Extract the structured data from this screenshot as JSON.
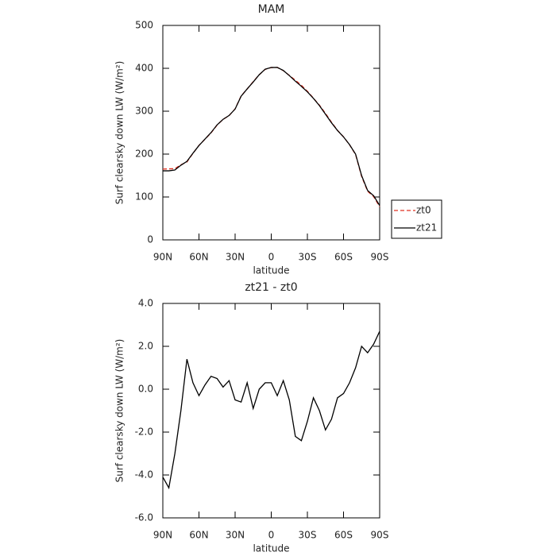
{
  "chart_data": [
    {
      "type": "line",
      "title": "MAM",
      "x_label": "latitude",
      "y_label": "Surf clearsky down LW (W/m²)",
      "x": [
        90,
        85,
        80,
        75,
        70,
        65,
        60,
        55,
        50,
        45,
        40,
        35,
        30,
        25,
        20,
        15,
        10,
        5,
        0,
        -5,
        -10,
        -15,
        -20,
        -25,
        -30,
        -35,
        -40,
        -45,
        -50,
        -55,
        -60,
        -65,
        -70,
        -75,
        -80,
        -85,
        -90
      ],
      "xlim": [
        90,
        -90
      ],
      "xticks": [
        {
          "value": 90,
          "label": "90N"
        },
        {
          "value": 60,
          "label": "60N"
        },
        {
          "value": 30,
          "label": "30N"
        },
        0,
        {
          "value": -30,
          "label": "30S"
        },
        {
          "value": -60,
          "label": "60S"
        },
        {
          "value": -90,
          "label": "90S"
        }
      ],
      "ylim": [
        0,
        500
      ],
      "yticks": [
        0,
        100,
        200,
        300,
        400,
        500
      ],
      "legend": "outside-right",
      "series": [
        {
          "name": "zt0",
          "color": "#e03020",
          "linestyle": "dashed",
          "values": [
            165.1,
            165.6,
            166,
            175,
            181.6,
            201.7,
            220.3,
            234.8,
            249.4,
            267.5,
            280.9,
            289.6,
            305.5,
            335.6,
            351.7,
            368.9,
            385,
            397.7,
            401.7,
            402.3,
            394.6,
            383.5,
            372.2,
            360.4,
            346.5,
            330.4,
            314,
            294.9,
            274.4,
            255.4,
            240.2,
            221.7,
            199,
            148,
            113.3,
            100.9,
            77.3
          ]
        },
        {
          "name": "zt21",
          "color": "#000000",
          "linestyle": "solid",
          "values": [
            161,
            161,
            163,
            174,
            183,
            202,
            220,
            235,
            250,
            268,
            281,
            290,
            305,
            335,
            352,
            368,
            385,
            398,
            402,
            402,
            395,
            383,
            370,
            358,
            345,
            330,
            313,
            293,
            273,
            255,
            240,
            222,
            200,
            150,
            115,
            103,
            80
          ]
        }
      ]
    },
    {
      "type": "line",
      "title": "zt21 - zt0",
      "x_label": "latitude",
      "y_label": "Surf clearsky down LW (W/m²)",
      "x": [
        90,
        85,
        80,
        75,
        70,
        65,
        60,
        55,
        50,
        45,
        40,
        35,
        30,
        25,
        20,
        15,
        10,
        5,
        0,
        -5,
        -10,
        -15,
        -20,
        -25,
        -30,
        -35,
        -40,
        -45,
        -50,
        -55,
        -60,
        -65,
        -70,
        -75,
        -80,
        -85,
        -90
      ],
      "xlim": [
        90,
        -90
      ],
      "xticks": [
        {
          "value": 90,
          "label": "90N"
        },
        {
          "value": 60,
          "label": "60N"
        },
        {
          "value": 30,
          "label": "30N"
        },
        0,
        {
          "value": -30,
          "label": "30S"
        },
        {
          "value": -60,
          "label": "60S"
        },
        {
          "value": -90,
          "label": "90S"
        }
      ],
      "ylim": [
        -6,
        4
      ],
      "yticks": [
        {
          "value": -6,
          "label": "-6.0"
        },
        {
          "value": -4,
          "label": "-4.0"
        },
        {
          "value": -2,
          "label": "-2.0"
        },
        {
          "value": 0,
          "label": "0.0"
        },
        {
          "value": 2,
          "label": "2.0"
        },
        {
          "value": 4,
          "label": "4.0"
        }
      ],
      "series": [
        {
          "color": "#000000",
          "linestyle": "solid",
          "values": [
            -4.1,
            -4.6,
            -3.0,
            -1.0,
            1.4,
            0.3,
            -0.3,
            0.2,
            0.6,
            0.5,
            0.1,
            0.4,
            -0.5,
            -0.6,
            0.3,
            -0.9,
            0.0,
            0.3,
            0.3,
            -0.3,
            0.4,
            -0.5,
            -2.2,
            -2.4,
            -1.5,
            -0.4,
            -1.0,
            -1.9,
            -1.4,
            -0.4,
            -0.2,
            0.3,
            1.0,
            2.0,
            1.7,
            2.1,
            2.7
          ]
        }
      ]
    }
  ]
}
